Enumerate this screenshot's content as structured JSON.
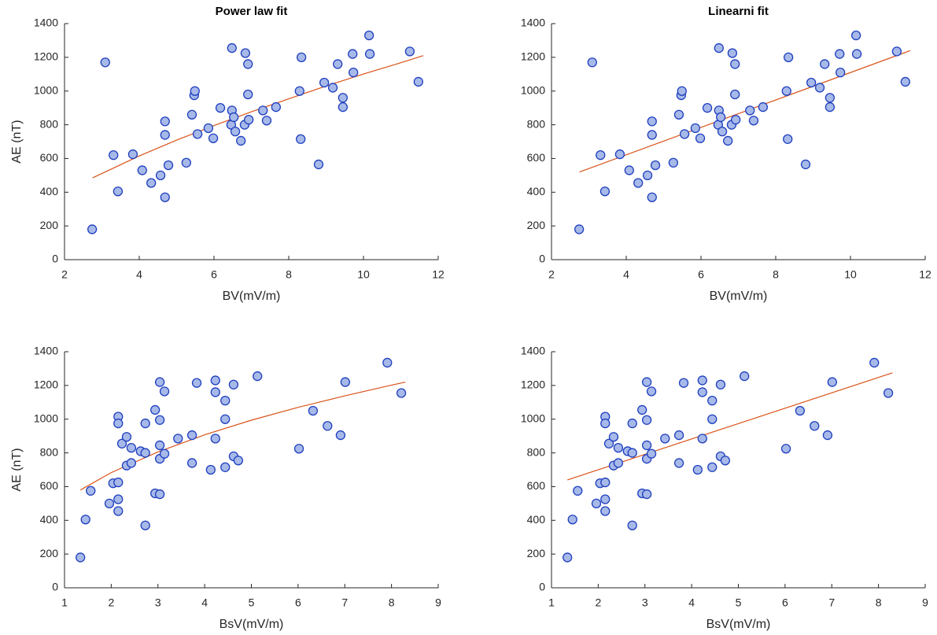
{
  "chart_data": [
    {
      "type": "scatter",
      "title": "Power law fit",
      "xlabel": "BV(mV/m)",
      "ylabel": "AE (nT)",
      "xlim": [
        2,
        12
      ],
      "ylim": [
        0,
        1400
      ],
      "xticks": [
        2,
        4,
        6,
        8,
        10,
        12
      ],
      "yticks": [
        0,
        200,
        400,
        600,
        800,
        1000,
        1200,
        1400
      ],
      "color": "#a7b9e8",
      "edgecolor": "#1f3fbf",
      "x": [
        2.74,
        3.31,
        3.09,
        3.43,
        3.83,
        4.08,
        4.32,
        4.57,
        4.69,
        4.69,
        4.69,
        4.78,
        5.26,
        5.41,
        5.47,
        5.49,
        5.56,
        5.85,
        5.98,
        6.17,
        6.46,
        6.48,
        6.48,
        6.53,
        6.57,
        6.72,
        6.82,
        6.84,
        6.91,
        6.93,
        6.91,
        7.31,
        7.41,
        7.66,
        8.29,
        8.32,
        8.34,
        8.8,
        8.95,
        9.18,
        9.31,
        9.45,
        9.45,
        9.71,
        9.73,
        10.15,
        10.17,
        11.24,
        11.47
      ],
      "values": [
        180,
        620,
        1170,
        405,
        625,
        530,
        455,
        500,
        820,
        740,
        370,
        560,
        575,
        860,
        975,
        1000,
        745,
        780,
        720,
        900,
        800,
        1255,
        885,
        845,
        760,
        705,
        800,
        1225,
        1160,
        830,
        980,
        885,
        825,
        905,
        1000,
        715,
        1200,
        565,
        1050,
        1020,
        1160,
        905,
        960,
        1220,
        1110,
        1330,
        1220,
        1235,
        1055
      ],
      "fit": {
        "color": "#d95319",
        "x": [
          2.75,
          4,
          5,
          6,
          7,
          8,
          9,
          10,
          11,
          11.6
        ],
        "values": [
          485,
          615,
          709,
          795,
          877,
          954,
          1030,
          1101,
          1168,
          1210
        ]
      }
    },
    {
      "type": "scatter",
      "title": "Linearni fit",
      "xlabel": "BV(mV/m)",
      "xlim": [
        2,
        12
      ],
      "ylim": [
        0,
        1400
      ],
      "xticks": [
        2,
        4,
        6,
        8,
        10,
        12
      ],
      "yticks": [
        0,
        200,
        400,
        600,
        800,
        1000,
        1200,
        1400
      ],
      "color": "#a7b9e8",
      "edgecolor": "#1f3fbf",
      "x": [
        2.74,
        3.31,
        3.09,
        3.43,
        3.83,
        4.08,
        4.32,
        4.57,
        4.69,
        4.69,
        4.69,
        4.78,
        5.26,
        5.41,
        5.47,
        5.49,
        5.56,
        5.85,
        5.98,
        6.17,
        6.46,
        6.48,
        6.48,
        6.53,
        6.57,
        6.72,
        6.82,
        6.84,
        6.91,
        6.93,
        6.91,
        7.31,
        7.41,
        7.66,
        8.29,
        8.32,
        8.34,
        8.8,
        8.95,
        9.18,
        9.31,
        9.45,
        9.45,
        9.71,
        9.73,
        10.15,
        10.17,
        11.24,
        11.47
      ],
      "values": [
        180,
        620,
        1170,
        405,
        625,
        530,
        455,
        500,
        820,
        740,
        370,
        560,
        575,
        860,
        975,
        1000,
        745,
        780,
        720,
        900,
        800,
        1255,
        885,
        845,
        760,
        705,
        800,
        1225,
        1160,
        830,
        980,
        885,
        825,
        905,
        1000,
        715,
        1200,
        565,
        1050,
        1020,
        1160,
        905,
        960,
        1220,
        1110,
        1330,
        1220,
        1235,
        1055
      ],
      "fit": {
        "color": "#d95319",
        "x": [
          2.75,
          11.6
        ],
        "values": [
          520,
          1240
        ]
      }
    },
    {
      "type": "scatter",
      "xlabel": "BsV(mV/m)",
      "ylabel": "AE (nT)",
      "xlim": [
        1,
        9
      ],
      "ylim": [
        0,
        1400
      ],
      "xticks": [
        1,
        2,
        3,
        4,
        5,
        6,
        7,
        8,
        9
      ],
      "yticks": [
        0,
        200,
        400,
        600,
        800,
        1000,
        1200,
        1400
      ],
      "color": "#a7b9e8",
      "edgecolor": "#1f3fbf",
      "x": [
        1.34,
        1.45,
        1.56,
        1.96,
        2.04,
        2.15,
        2.15,
        2.15,
        2.15,
        2.15,
        2.23,
        2.33,
        2.33,
        2.43,
        2.43,
        2.63,
        2.73,
        2.73,
        2.73,
        2.94,
        2.94,
        3.04,
        3.04,
        3.04,
        3.04,
        3.04,
        3.14,
        3.14,
        3.43,
        3.73,
        3.73,
        3.83,
        4.13,
        4.23,
        4.23,
        4.23,
        4.44,
        4.44,
        4.44,
        4.62,
        4.62,
        4.72,
        5.13,
        6.02,
        6.32,
        6.63,
        6.91,
        7.01,
        7.91,
        8.21
      ],
      "values": [
        180,
        405,
        575,
        500,
        620,
        625,
        1015,
        975,
        525,
        455,
        855,
        895,
        725,
        740,
        830,
        810,
        975,
        800,
        370,
        1055,
        560,
        1220,
        995,
        845,
        765,
        555,
        1165,
        795,
        885,
        905,
        740,
        1215,
        700,
        1230,
        1160,
        885,
        1110,
        1000,
        715,
        1205,
        780,
        755,
        1255,
        825,
        1050,
        960,
        905,
        1220,
        1335,
        1155
      ],
      "fit": {
        "color": "#d95319",
        "x": [
          1.34,
          2,
          3,
          4,
          5,
          6,
          7,
          8,
          8.3
        ],
        "values": [
          580,
          683,
          806,
          907,
          994,
          1070,
          1138,
          1202,
          1220
        ]
      }
    },
    {
      "type": "scatter",
      "xlabel": "BsV(mV/m)",
      "xlim": [
        1,
        9
      ],
      "ylim": [
        0,
        1400
      ],
      "xticks": [
        1,
        2,
        3,
        4,
        5,
        6,
        7,
        8,
        9
      ],
      "yticks": [
        0,
        200,
        400,
        600,
        800,
        1000,
        1200,
        1400
      ],
      "color": "#a7b9e8",
      "edgecolor": "#1f3fbf",
      "x": [
        1.34,
        1.45,
        1.56,
        1.96,
        2.04,
        2.15,
        2.15,
        2.15,
        2.15,
        2.15,
        2.23,
        2.33,
        2.33,
        2.43,
        2.43,
        2.63,
        2.73,
        2.73,
        2.73,
        2.94,
        2.94,
        3.04,
        3.04,
        3.04,
        3.04,
        3.04,
        3.14,
        3.14,
        3.43,
        3.73,
        3.73,
        3.83,
        4.13,
        4.23,
        4.23,
        4.23,
        4.44,
        4.44,
        4.44,
        4.62,
        4.62,
        4.72,
        5.13,
        6.02,
        6.32,
        6.63,
        6.91,
        7.01,
        7.91,
        8.21
      ],
      "values": [
        180,
        405,
        575,
        500,
        620,
        625,
        1015,
        975,
        525,
        455,
        855,
        895,
        725,
        740,
        830,
        810,
        975,
        800,
        370,
        1055,
        560,
        1220,
        995,
        845,
        765,
        555,
        1165,
        795,
        885,
        905,
        740,
        1215,
        700,
        1230,
        1160,
        885,
        1110,
        1000,
        715,
        1205,
        780,
        755,
        1255,
        825,
        1050,
        960,
        905,
        1220,
        1335,
        1155
      ],
      "fit": {
        "color": "#d95319",
        "x": [
          1.34,
          8.3
        ],
        "values": [
          640,
          1275
        ]
      }
    }
  ]
}
